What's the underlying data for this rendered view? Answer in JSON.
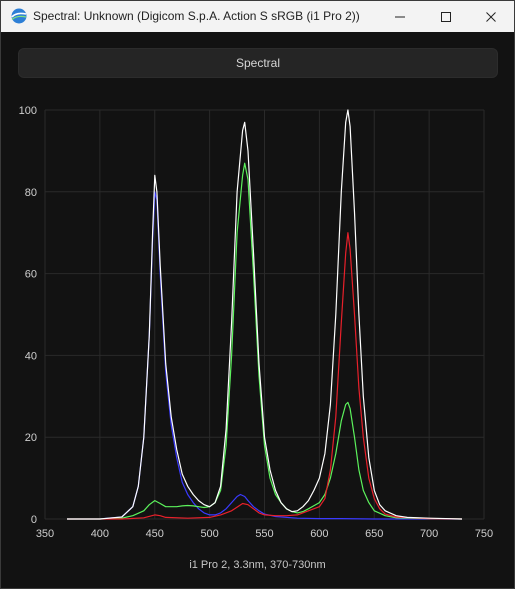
{
  "window": {
    "title": "Spectral: Unknown (Digicom S.p.A. Action S sRGB (i1 Pro 2))",
    "app_icon": "spectral-app-icon",
    "controls": [
      "minimize-icon",
      "maximize-icon",
      "close-icon"
    ]
  },
  "tab": {
    "label": "Spectral"
  },
  "footer": {
    "label": "i1 Pro 2, 3.3nm, 370-730nm"
  },
  "colors": {
    "background": "#121212",
    "grid": "#2a2a2a",
    "axis_text": "#cfcfcf",
    "white": "#ffffff",
    "red": "#e8202a",
    "green": "#5cf25c",
    "blue": "#3a3aff"
  },
  "chart_data": {
    "type": "line",
    "xlim": [
      350,
      750
    ],
    "ylim": [
      0,
      100
    ],
    "xticks": [
      350,
      400,
      450,
      500,
      550,
      600,
      650,
      700,
      750
    ],
    "yticks": [
      0,
      20,
      40,
      60,
      80,
      100
    ],
    "grid": true,
    "series": [
      {
        "color": "white",
        "points": [
          [
            370,
            0
          ],
          [
            380,
            0
          ],
          [
            400,
            0
          ],
          [
            420,
            0.5
          ],
          [
            430,
            3
          ],
          [
            435,
            8
          ],
          [
            440,
            20
          ],
          [
            445,
            45
          ],
          [
            448,
            70
          ],
          [
            450,
            84
          ],
          [
            452,
            80
          ],
          [
            455,
            62
          ],
          [
            460,
            38
          ],
          [
            465,
            25
          ],
          [
            470,
            17
          ],
          [
            475,
            11
          ],
          [
            480,
            8
          ],
          [
            485,
            6
          ],
          [
            490,
            4.5
          ],
          [
            495,
            3.5
          ],
          [
            500,
            3
          ],
          [
            505,
            4
          ],
          [
            510,
            8
          ],
          [
            515,
            22
          ],
          [
            520,
            48
          ],
          [
            525,
            80
          ],
          [
            530,
            95
          ],
          [
            532,
            97
          ],
          [
            535,
            90
          ],
          [
            540,
            65
          ],
          [
            545,
            38
          ],
          [
            550,
            20
          ],
          [
            555,
            12
          ],
          [
            560,
            7
          ],
          [
            565,
            4
          ],
          [
            570,
            2.5
          ],
          [
            575,
            1.8
          ],
          [
            580,
            2
          ],
          [
            585,
            3
          ],
          [
            590,
            4.5
          ],
          [
            595,
            7
          ],
          [
            600,
            10
          ],
          [
            605,
            16
          ],
          [
            610,
            28
          ],
          [
            615,
            50
          ],
          [
            620,
            80
          ],
          [
            624,
            97
          ],
          [
            626,
            100
          ],
          [
            628,
            96
          ],
          [
            632,
            75
          ],
          [
            636,
            50
          ],
          [
            640,
            30
          ],
          [
            645,
            15
          ],
          [
            650,
            7
          ],
          [
            655,
            3.5
          ],
          [
            660,
            2
          ],
          [
            670,
            0.8
          ],
          [
            680,
            0.4
          ],
          [
            700,
            0.2
          ],
          [
            730,
            0
          ]
        ]
      },
      {
        "color": "red",
        "points": [
          [
            370,
            0
          ],
          [
            400,
            0
          ],
          [
            420,
            0
          ],
          [
            440,
            0.3
          ],
          [
            450,
            1
          ],
          [
            455,
            0.8
          ],
          [
            460,
            0.4
          ],
          [
            480,
            0.2
          ],
          [
            500,
            0.4
          ],
          [
            510,
            1
          ],
          [
            520,
            2
          ],
          [
            530,
            3.8
          ],
          [
            535,
            3.5
          ],
          [
            540,
            2.5
          ],
          [
            545,
            1.5
          ],
          [
            550,
            1
          ],
          [
            560,
            0.8
          ],
          [
            570,
            0.8
          ],
          [
            580,
            1
          ],
          [
            590,
            2
          ],
          [
            600,
            3
          ],
          [
            605,
            5
          ],
          [
            610,
            12
          ],
          [
            615,
            25
          ],
          [
            620,
            48
          ],
          [
            624,
            65
          ],
          [
            626,
            70
          ],
          [
            628,
            66
          ],
          [
            632,
            50
          ],
          [
            636,
            32
          ],
          [
            640,
            20
          ],
          [
            645,
            10
          ],
          [
            650,
            5
          ],
          [
            655,
            2.5
          ],
          [
            660,
            1.2
          ],
          [
            670,
            0.5
          ],
          [
            700,
            0.1
          ],
          [
            730,
            0
          ]
        ]
      },
      {
        "color": "green",
        "points": [
          [
            370,
            0
          ],
          [
            400,
            0
          ],
          [
            420,
            0.2
          ],
          [
            430,
            0.8
          ],
          [
            440,
            2
          ],
          [
            445,
            3.5
          ],
          [
            450,
            4.5
          ],
          [
            455,
            3.8
          ],
          [
            460,
            3
          ],
          [
            465,
            3
          ],
          [
            470,
            3
          ],
          [
            475,
            3.2
          ],
          [
            480,
            3.3
          ],
          [
            485,
            3.2
          ],
          [
            490,
            3
          ],
          [
            495,
            2.8
          ],
          [
            500,
            3
          ],
          [
            505,
            4
          ],
          [
            510,
            7
          ],
          [
            515,
            18
          ],
          [
            520,
            40
          ],
          [
            525,
            70
          ],
          [
            530,
            84
          ],
          [
            532,
            87
          ],
          [
            535,
            83
          ],
          [
            540,
            60
          ],
          [
            545,
            35
          ],
          [
            550,
            18
          ],
          [
            555,
            10
          ],
          [
            560,
            6
          ],
          [
            565,
            4
          ],
          [
            570,
            2.5
          ],
          [
            575,
            1.8
          ],
          [
            580,
            1.5
          ],
          [
            585,
            1.8
          ],
          [
            590,
            2.5
          ],
          [
            600,
            4
          ],
          [
            605,
            6
          ],
          [
            610,
            10
          ],
          [
            615,
            16
          ],
          [
            620,
            24
          ],
          [
            624,
            28
          ],
          [
            626,
            28.5
          ],
          [
            628,
            27
          ],
          [
            632,
            20
          ],
          [
            636,
            12
          ],
          [
            640,
            7
          ],
          [
            645,
            4
          ],
          [
            650,
            2
          ],
          [
            660,
            0.8
          ],
          [
            670,
            0.3
          ],
          [
            700,
            0.1
          ],
          [
            730,
            0
          ]
        ]
      },
      {
        "color": "blue",
        "points": [
          [
            370,
            0
          ],
          [
            400,
            0
          ],
          [
            420,
            0.5
          ],
          [
            430,
            3
          ],
          [
            435,
            8
          ],
          [
            440,
            20
          ],
          [
            445,
            45
          ],
          [
            448,
            68
          ],
          [
            450,
            80
          ],
          [
            452,
            78
          ],
          [
            455,
            60
          ],
          [
            460,
            36
          ],
          [
            465,
            23
          ],
          [
            470,
            15
          ],
          [
            475,
            9
          ],
          [
            480,
            6
          ],
          [
            485,
            4
          ],
          [
            490,
            2.5
          ],
          [
            495,
            1.5
          ],
          [
            500,
            1
          ],
          [
            505,
            1
          ],
          [
            510,
            1.5
          ],
          [
            515,
            2.5
          ],
          [
            520,
            4
          ],
          [
            525,
            5.5
          ],
          [
            528,
            6
          ],
          [
            532,
            5.5
          ],
          [
            535,
            4.5
          ],
          [
            540,
            3
          ],
          [
            545,
            2
          ],
          [
            550,
            1.2
          ],
          [
            560,
            0.6
          ],
          [
            580,
            0.2
          ],
          [
            600,
            0.1
          ],
          [
            620,
            0.1
          ],
          [
            650,
            0
          ],
          [
            730,
            0
          ]
        ]
      }
    ]
  }
}
